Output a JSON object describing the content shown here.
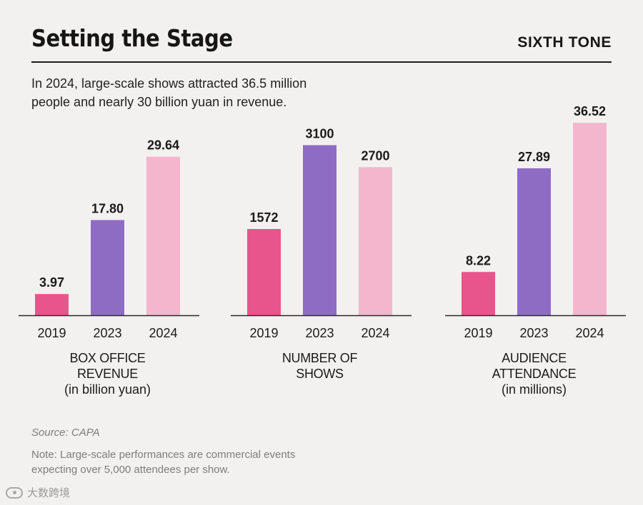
{
  "header": {
    "title": "Setting the Stage",
    "brand": "SIXTH TONE",
    "subtitle": "In 2024, large-scale shows attracted 36.5 million people and nearly 30 billion yuan in revenue."
  },
  "footer": {
    "source": "Source: CAPA",
    "note": "Note: Large-scale performances are commercial events expecting over 5,000 attendees per show.",
    "watermark": "大数跨境"
  },
  "colors": {
    "2019": "#e8558c",
    "2023": "#8f6cc4",
    "2024": "#f3b6cd",
    "text": "#1b1b1b",
    "background": "#f2f1ef"
  },
  "chart_data": [
    {
      "type": "bar",
      "categories": [
        "2019",
        "2023",
        "2024"
      ],
      "values": [
        3.97,
        17.8,
        29.64
      ],
      "value_labels": [
        "3.97",
        "17.80",
        "29.64"
      ],
      "label_lines": [
        "BOX OFFICE",
        "REVENUE",
        "(in billion yuan)"
      ],
      "ylim": [
        0,
        40
      ]
    },
    {
      "type": "bar",
      "categories": [
        "2019",
        "2023",
        "2024"
      ],
      "values": [
        1572,
        3100,
        2700
      ],
      "value_labels": [
        "1572",
        "3100",
        "2700"
      ],
      "label_lines": [
        "NUMBER OF",
        "SHOWS"
      ],
      "ylim": [
        0,
        3900
      ]
    },
    {
      "type": "bar",
      "categories": [
        "2019",
        "2023",
        "2024"
      ],
      "values": [
        8.22,
        27.89,
        36.52
      ],
      "value_labels": [
        "8.22",
        "27.89",
        "36.52"
      ],
      "label_lines": [
        "AUDIENCE",
        "ATTENDANCE",
        "(in millions)"
      ],
      "ylim": [
        0,
        40.6
      ]
    }
  ]
}
